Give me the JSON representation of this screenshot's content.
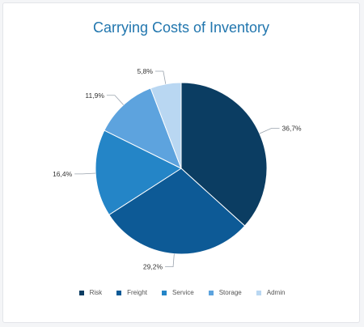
{
  "chart_data": {
    "type": "pie",
    "title": "Carrying Costs of Inventory",
    "categories": [
      "Risk",
      "Freight",
      "Service",
      "Storage",
      "Admin"
    ],
    "values": [
      36.7,
      29.2,
      16.4,
      11.9,
      5.8
    ],
    "value_labels": [
      "36,7%",
      "29,2%",
      "16,4%",
      "11,9%",
      "5,8%"
    ],
    "colors": [
      "#0b3d62",
      "#0d5a96",
      "#2485c7",
      "#5da3de",
      "#b9d7f2"
    ],
    "legend_position": "bottom",
    "start": "top",
    "direction": "clockwise"
  }
}
